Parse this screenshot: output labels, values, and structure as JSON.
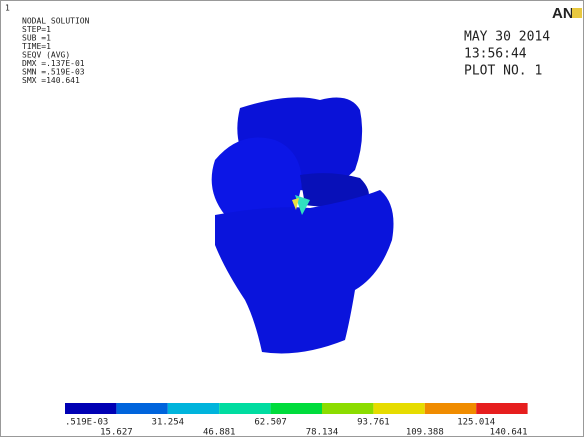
{
  "window": {
    "id": "1"
  },
  "info": [
    "NODAL SOLUTION",
    "STEP=1",
    "SUB =1",
    "TIME=1",
    "SEQV    (AVG)",
    "DMX =.137E-01",
    "SMN =.519E-03",
    "SMX =140.641"
  ],
  "logo": "AN",
  "header": {
    "date": "MAY 30 2014",
    "time": "13:56:44",
    "plot": "PLOT NO.   1"
  },
  "legend": {
    "labels": [
      ".519E-03",
      "15.627",
      "31.254",
      "46.881",
      "62.507",
      "78.134",
      "93.761",
      "109.388",
      "125.014",
      "140.641"
    ],
    "colors": [
      "#0000b4",
      "#0064dc",
      "#00b4dc",
      "#00dca0",
      "#00dc3c",
      "#8cdc00",
      "#e6dc00",
      "#f08c00",
      "#e61e1e"
    ]
  }
}
